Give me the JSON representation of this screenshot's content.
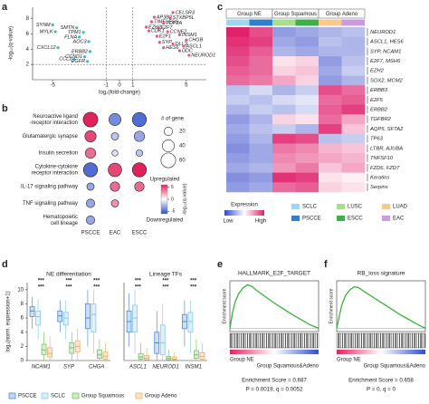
{
  "chart_data": [
    {
      "type": "scatter",
      "panel_label": "a",
      "xlabel": "log₂(fold-change)",
      "ylabel": "-log₁₀(q-value)",
      "xlim": [
        -6.5,
        6.5
      ],
      "ylim": [
        0,
        9.5
      ],
      "xticks": [
        -5,
        -1,
        0,
        1,
        5
      ],
      "yticks": [
        2,
        4,
        6,
        8
      ],
      "x_cutoffs": [
        -1,
        1
      ],
      "y_cutoff": 2,
      "series": [
        {
          "color": "#ee4f8a",
          "labels": [
            "CELSR3",
            "AP3B2",
            "STXBP5L",
            "TIMELESS",
            "TOP2A",
            "EZH2",
            "E2F7",
            "CDK1",
            "CCNE2",
            "INSM1",
            "E2F1",
            "CHGB",
            "SYP",
            "DLL3",
            "ASCL1",
            "HES6",
            "DDC",
            "NEUROD1"
          ],
          "x": [
            4.0,
            2.6,
            3.8,
            2.4,
            3.3,
            2.0,
            2.9,
            2.2,
            3.6,
            4.5,
            2.8,
            5.0,
            3.0,
            4.0,
            4.8,
            3.3,
            4.5,
            5.2
          ],
          "values": [
            8.8,
            8.2,
            8.1,
            7.6,
            7.4,
            6.9,
            6.8,
            6.4,
            6.3,
            5.9,
            5.7,
            5.2,
            4.9,
            4.7,
            4.4,
            4.2,
            3.8,
            3.2
          ]
        },
        {
          "color": "#3fb8c0",
          "labels": [
            "SYNM",
            "MYLK",
            "SMTN",
            "TPM1",
            "FLNA",
            "AOC3",
            "CXCL12",
            "ERBB2",
            "CCND1",
            "CCL2",
            "EGFR"
          ],
          "x": [
            -5.0,
            -4.8,
            -3.2,
            -2.7,
            -3.0,
            -2.3,
            -4.6,
            -2.2,
            -2.6,
            -3.4,
            -2.4
          ],
          "values": [
            7.2,
            6.3,
            6.8,
            6.2,
            5.6,
            5.0,
            4.2,
            3.7,
            3.0,
            2.7,
            2.4
          ]
        }
      ]
    },
    {
      "type": "dot",
      "panel_label": "b",
      "rows": [
        [
          "Neuroactive ligand",
          "-receptor interaction"
        ],
        [
          "Glutamatergic synapse"
        ],
        [
          "Insulin secretion"
        ],
        [
          "Cytokine-cytokine",
          "receptor interaction"
        ],
        [
          "IL-17 signaling pathway"
        ],
        [
          "TNF signaling pathway"
        ],
        [
          "Hematopoietic",
          "cell lineage"
        ]
      ],
      "columns": [
        "PSCCE",
        "EAC",
        "ESCC"
      ],
      "sizes": [
        [
          60,
          40,
          55
        ],
        [
          35,
          15,
          30
        ],
        [
          30,
          10,
          12
        ],
        [
          55,
          50,
          55
        ],
        [
          15,
          25,
          25
        ],
        [
          20,
          15,
          null
        ],
        [
          20,
          null,
          null
        ]
      ],
      "values": [
        [
          6,
          -4,
          -5
        ],
        [
          5,
          -2,
          -3
        ],
        [
          4,
          -1,
          -2
        ],
        [
          -5,
          5,
          6
        ],
        [
          -3,
          4,
          4
        ],
        [
          -3,
          3,
          null
        ],
        [
          -3,
          null,
          null
        ]
      ],
      "size_title": "# of gene",
      "size_ticks": [
        20,
        40,
        60
      ],
      "color_title": "-log₁₀(q-value)",
      "up_label": "Upregulated",
      "down_label": "Downregulated",
      "clim": [
        -6,
        6
      ],
      "cticks": [
        -5,
        0,
        5
      ],
      "up_color": "#e0225a",
      "down_color": "#2f4fc8"
    },
    {
      "type": "heatmap",
      "panel_label": "c",
      "groups": [
        "Group NE",
        "Group Squamous",
        "Group Adeno"
      ],
      "subtypes": [
        {
          "name": "SCLC",
          "color": "#9fd6f0"
        },
        {
          "name": "PSCCE",
          "color": "#2f7fd0"
        },
        {
          "name": "LUSC",
          "color": "#a8df8c"
        },
        {
          "name": "ESCC",
          "color": "#3cb04a"
        },
        {
          "name": "LUAD",
          "color": "#f6c98f"
        },
        {
          "name": "EAC",
          "color": "#c99be0"
        }
      ],
      "genes": [
        "NEUROD1",
        "ASCL1, HES6",
        "SYP, NCAM1",
        "E2F7, MSH6",
        "EZH2",
        "SOX2, MCM2",
        "ERBB3",
        "E2F5",
        "ERBB2",
        "TGFBR2",
        "AQP5, SFTA2",
        "TP63",
        "LTBR, AJUBA",
        "TNFSF10",
        "FZD6, FZD7",
        "Keratins",
        "Serpins"
      ],
      "values": [
        [
          1.5,
          1.2,
          -0.8,
          -0.7,
          -0.6,
          -0.5
        ],
        [
          1.4,
          1.3,
          -0.7,
          -0.8,
          -0.5,
          -0.6
        ],
        [
          1.3,
          1.1,
          -0.6,
          -0.7,
          -0.6,
          -0.6
        ],
        [
          1.2,
          1.0,
          0.2,
          0.3,
          -0.8,
          -0.5
        ],
        [
          1.1,
          1.0,
          0.3,
          0.4,
          -0.7,
          -0.4
        ],
        [
          1.0,
          0.9,
          0.6,
          0.3,
          -0.8,
          -0.6
        ],
        [
          -0.5,
          -0.3,
          -0.6,
          -0.4,
          1.2,
          1.0
        ],
        [
          -0.4,
          -0.5,
          -0.3,
          -0.2,
          1.0,
          1.1
        ],
        [
          -0.6,
          -0.4,
          -0.5,
          -0.3,
          1.1,
          1.3
        ],
        [
          -0.8,
          -0.6,
          0.3,
          0.2,
          1.0,
          0.6
        ],
        [
          -0.7,
          -0.5,
          -0.4,
          -0.6,
          1.3,
          0.4
        ],
        [
          -0.8,
          -0.6,
          1.3,
          1.2,
          -0.5,
          -0.4
        ],
        [
          -0.9,
          -0.7,
          0.9,
          0.8,
          0.5,
          0.4
        ],
        [
          -0.8,
          -0.7,
          0.8,
          0.7,
          0.6,
          0.5
        ],
        [
          -0.7,
          -0.6,
          0.7,
          0.9,
          0.4,
          0.6
        ],
        [
          -0.9,
          -0.8,
          1.4,
          1.3,
          0.2,
          0.1
        ],
        [
          -0.8,
          -0.7,
          1.0,
          1.1,
          0.3,
          0.2
        ]
      ],
      "clim": [
        -1.5,
        1.5
      ],
      "low_color": "#3246c8",
      "high_color": "#e0226b",
      "legend_title": "Expression",
      "low_label": "Low",
      "high_label": "High"
    },
    {
      "type": "box",
      "panel_label": "d",
      "ylabel": "log₂(norm. expression+1)",
      "ylim": [
        0,
        11
      ],
      "yticks": [
        0,
        2,
        4,
        6,
        8,
        10
      ],
      "groups": [
        {
          "name": "PSCCE",
          "color": "#3b7fd0"
        },
        {
          "name": "SCLC",
          "color": "#7cc3e8"
        },
        {
          "name": "Group Squamous",
          "color": "#6dbb5a"
        },
        {
          "name": "Group Adeno",
          "color": "#eea55a"
        }
      ],
      "facets": [
        {
          "title": "NE differentiation",
          "genes": [
            "NCAM1",
            "SYP",
            "CHGA"
          ],
          "significance": [
            [
              "***",
              "***"
            ],
            [
              "***",
              "***"
            ],
            [
              "***",
              "***"
            ]
          ],
          "stats": [
            [
              [
                4.5,
                6.2,
                7,
                7.6,
                9
              ],
              [
                3,
                5,
                6.2,
                7,
                8.6
              ],
              [
                0,
                0.8,
                1.5,
                2.3,
                4
              ],
              [
                0,
                0.5,
                1,
                1.8,
                3.5
              ]
            ],
            [
              [
                4,
                5.5,
                6.3,
                7,
                8.5
              ],
              [
                3,
                5,
                6,
                6.8,
                8.5
              ],
              [
                0,
                1,
                1.8,
                2.5,
                4
              ],
              [
                0,
                1.2,
                2,
                2.8,
                4.5
              ]
            ],
            [
              [
                2,
                4.5,
                6,
                8,
                10
              ],
              [
                1,
                4,
                6.5,
                8,
                10
              ],
              [
                0,
                0.3,
                0.8,
                1.5,
                3
              ],
              [
                0,
                0.2,
                0.6,
                1.2,
                2.5
              ]
            ]
          ]
        },
        {
          "title": "Lineage TFs",
          "genes": [
            "ASCL1",
            "NEUROD1",
            "INSM1"
          ],
          "significance": [
            [
              "***",
              "***"
            ],
            [
              "***",
              "***"
            ],
            [
              "***",
              "***"
            ]
          ],
          "stats": [
            [
              [
                2,
                4,
                5.5,
                7,
                9.5
              ],
              [
                1,
                4,
                6,
                7.8,
                10
              ],
              [
                0,
                0.2,
                0.5,
                1,
                2.5
              ],
              [
                0,
                0.1,
                0.3,
                0.7,
                1.8
              ]
            ],
            [
              [
                0,
                1,
                2.5,
                4,
                7
              ],
              [
                0,
                0.8,
                2.5,
                5,
                8
              ],
              [
                0,
                0.1,
                0.3,
                0.6,
                1.5
              ],
              [
                0,
                0.1,
                0.2,
                0.5,
                1.2
              ]
            ],
            [
              [
                2,
                4.5,
                5.5,
                6.5,
                8.5
              ],
              [
                1,
                4,
                5.5,
                6.8,
                8.5
              ],
              [
                0,
                0.3,
                0.8,
                1.4,
                3
              ],
              [
                0,
                0.2,
                0.6,
                1.1,
                2.5
              ]
            ]
          ]
        }
      ]
    },
    {
      "type": "line",
      "panel_label": "e",
      "title": "HALLMARK_E2F_TARGET",
      "ylabel": "Enrichment score",
      "x": [
        0,
        3,
        6,
        10,
        15,
        20,
        25,
        30,
        40,
        50,
        60,
        70,
        80,
        90,
        100
      ],
      "values": [
        0,
        0.25,
        0.42,
        0.55,
        0.64,
        0.687,
        0.66,
        0.6,
        0.5,
        0.4,
        0.31,
        0.22,
        0.14,
        0.06,
        0
      ],
      "xlim": [
        0,
        100
      ],
      "ylim": [
        -0.05,
        0.75
      ],
      "color": "#35b43a",
      "left_label": "Group NE",
      "right_label": "Group Squamous&Adeno",
      "annotations": [
        "Enrichment Score = 0.687",
        "P = 0.0019, q = 0.0052"
      ]
    },
    {
      "type": "line",
      "panel_label": "f",
      "title": "RB_loss signature",
      "ylabel": "Enrichment score",
      "x": [
        0,
        3,
        6,
        10,
        15,
        20,
        25,
        30,
        40,
        50,
        60,
        70,
        80,
        90,
        100
      ],
      "values": [
        0,
        0.2,
        0.38,
        0.52,
        0.61,
        0.658,
        0.64,
        0.59,
        0.5,
        0.41,
        0.32,
        0.23,
        0.15,
        0.07,
        0
      ],
      "xlim": [
        0,
        100
      ],
      "ylim": [
        -0.05,
        0.75
      ],
      "color": "#35b43a",
      "left_label": "Group NE",
      "right_label": "Group Squamous&Adeno",
      "annotations": [
        "Enrichment Score = 0.658",
        "P = 0, q = 0"
      ]
    }
  ]
}
